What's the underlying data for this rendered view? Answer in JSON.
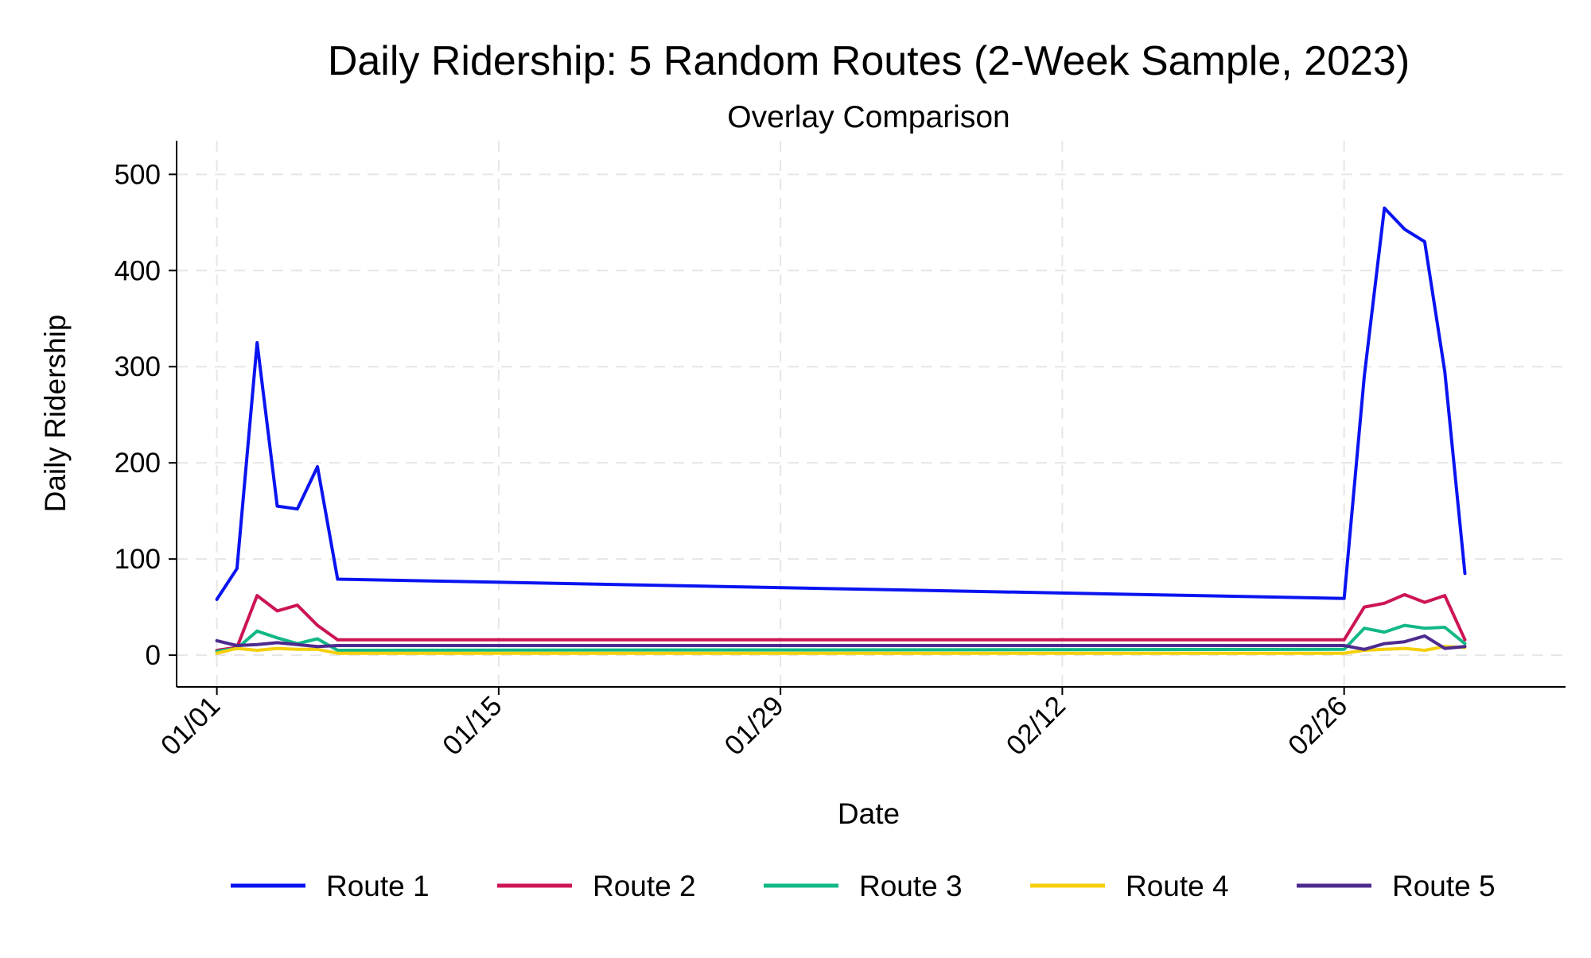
{
  "chart_data": {
    "type": "line",
    "title": "Daily Ridership: 5 Random Routes (2-Week Sample, 2023)",
    "subtitle": "Overlay Comparison",
    "xlabel": "Date",
    "ylabel": "Daily Ridership",
    "x_ticks": [
      "2023-01-01",
      "2023-01-15",
      "2023-01-29",
      "2023-02-12",
      "2023-02-26"
    ],
    "x_tick_labels": [
      "01/01",
      "01/15",
      "01/29",
      "02/12",
      "02/26"
    ],
    "x_range": [
      "2022-12-30",
      "2023-03-09"
    ],
    "ylim": [
      -33,
      535
    ],
    "y_ticks": [
      0,
      100,
      200,
      300,
      400,
      500
    ],
    "y_tick_labels": [
      "0",
      "100",
      "200",
      "300",
      "400",
      "500"
    ],
    "grid": true,
    "legend_position": "bottom",
    "x": [
      "2023-01-01",
      "2023-01-02",
      "2023-01-03",
      "2023-01-04",
      "2023-01-05",
      "2023-01-06",
      "2023-01-07",
      "2023-02-26",
      "2023-02-27",
      "2023-02-28",
      "2023-03-01",
      "2023-03-02",
      "2023-03-03",
      "2023-03-04",
      "2023-03-05",
      "2023-03-06"
    ],
    "series": [
      {
        "name": "Route 1",
        "color": "#0a14f0",
        "values": [
          58,
          90,
          325,
          155,
          152,
          196,
          79,
          59,
          290,
          465,
          443,
          430,
          295,
          85,
          null,
          null
        ]
      },
      {
        "name": "Route 2",
        "color": "#cc1456",
        "values": [
          5,
          8,
          62,
          46,
          52,
          31,
          16,
          16,
          50,
          54,
          63,
          55,
          62,
          16,
          null,
          null
        ]
      },
      {
        "name": "Route 3",
        "color": "#12b886",
        "values": [
          4,
          7,
          25,
          18,
          12,
          17,
          5,
          6,
          28,
          24,
          31,
          28,
          29,
          12,
          null,
          null
        ]
      },
      {
        "name": "Route 4",
        "color": "#f5cf0a",
        "values": [
          2,
          7,
          5,
          7,
          6,
          6,
          2,
          2,
          5,
          6,
          7,
          5,
          9,
          8,
          null,
          null
        ]
      },
      {
        "name": "Route 5",
        "color": "#4e2a8e",
        "values": [
          15,
          10,
          11,
          13,
          11,
          9,
          10,
          10,
          6,
          12,
          14,
          20,
          7,
          9,
          null,
          null
        ]
      }
    ]
  }
}
